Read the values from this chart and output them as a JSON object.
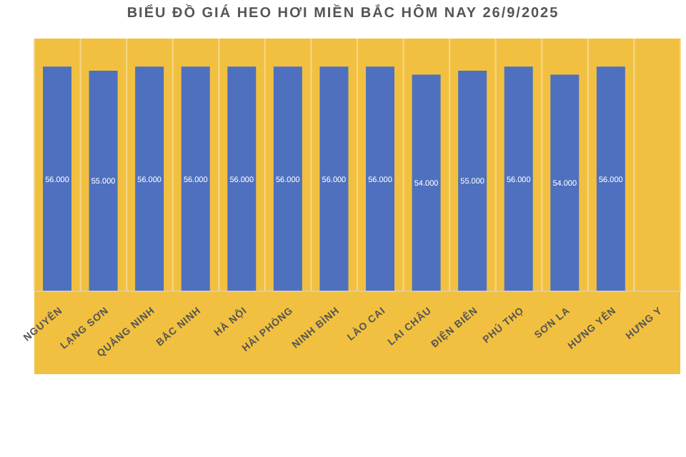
{
  "chart_data": {
    "type": "bar",
    "title": "BIỂU ĐỒ GIÁ HEO HƠI MIỀN BẮC HÔM NAY 26/9/2025",
    "categories": [
      "NGUYÊN",
      "LẠNG SƠN",
      "QUẢNG NINH",
      "BẮC NINH",
      "HÀ NỘI",
      "HẢI PHÒNG",
      "NINH BÌNH",
      "LÀO CAI",
      "LAI CHÂU",
      "ĐIỆN BIÊN",
      "PHÚ THỌ",
      "SƠN LA",
      "HƯNG YÊN",
      "HƯNG Y"
    ],
    "values": [
      56000,
      55000,
      56000,
      56000,
      56000,
      56000,
      56000,
      56000,
      54000,
      55000,
      56000,
      54000,
      56000,
      null
    ],
    "value_labels": [
      "56.000",
      "55.000",
      "56.000",
      "56.000",
      "56.000",
      "56.000",
      "56.000",
      "56.000",
      "54.000",
      "55.000",
      "56.000",
      "54.000",
      "56.000",
      null
    ],
    "color": "#4e70bf",
    "ylim": [
      0,
      63000
    ],
    "grid": "x"
  }
}
